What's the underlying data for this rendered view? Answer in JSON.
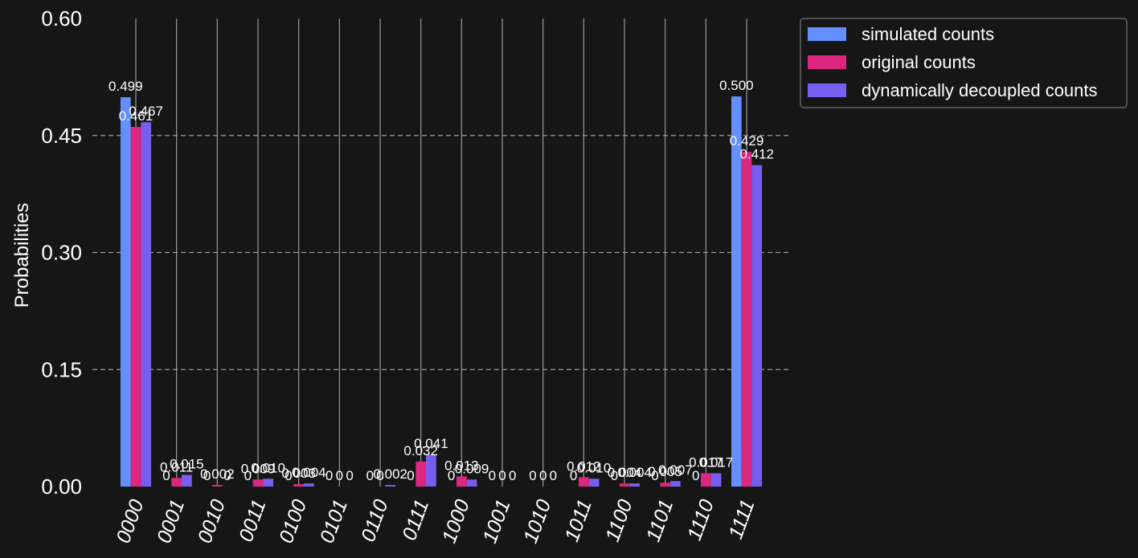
{
  "chart_data": {
    "type": "bar",
    "ylabel": "Probabilities",
    "xlabel": "",
    "ylim": [
      0,
      0.6
    ],
    "y_ticks": [
      "0.00",
      "0.15",
      "0.30",
      "0.45",
      "0.60"
    ],
    "categories": [
      "0000",
      "0001",
      "0010",
      "0011",
      "0100",
      "0101",
      "0110",
      "0111",
      "1000",
      "1001",
      "1010",
      "1011",
      "1100",
      "1101",
      "1110",
      "1111"
    ],
    "series": [
      {
        "name": "simulated counts",
        "color": "#648fff",
        "values": [
          0.499,
          0,
          0,
          0,
          0,
          0,
          0,
          0,
          0,
          0,
          0,
          0,
          0,
          0,
          0,
          0.5
        ],
        "labels": [
          "0.499",
          "0",
          "0",
          "0",
          "0",
          "0",
          "0",
          "0",
          "0",
          "0",
          "0",
          "0",
          "0",
          "0",
          "0",
          "0.500"
        ]
      },
      {
        "name": "original counts",
        "color": "#dc267f",
        "values": [
          0.461,
          0.011,
          0.002,
          0.009,
          0.003,
          0,
          0,
          0.032,
          0.013,
          0,
          0,
          0.012,
          0.004,
          0.005,
          0.017,
          0.429
        ],
        "labels": [
          "0.461",
          "0.011",
          "0.002",
          "0.009",
          "0.003",
          "0",
          "0",
          "0.032",
          "0.013",
          "0",
          "0",
          "0.012",
          "0.004",
          "0.005",
          "0.017",
          "0.429"
        ]
      },
      {
        "name": "dynamically decoupled counts",
        "color": "#785ef0",
        "values": [
          0.467,
          0.015,
          0,
          0.01,
          0.004,
          0,
          0.002,
          0.041,
          0.009,
          0,
          0,
          0.01,
          0.004,
          0.007,
          0.017,
          0.412
        ],
        "labels": [
          "0.467",
          "0.015",
          "0",
          "0.010",
          "0.004",
          "0",
          "0.002",
          "0.041",
          "0.009",
          "0",
          "0",
          "0.010",
          "0.004",
          "0.007",
          "0.017",
          "0.412"
        ]
      }
    ],
    "grid": {
      "x": true,
      "y": "dashed"
    },
    "legend_position": "outside-right-top",
    "colors": {
      "background": "#161616",
      "text": "#ffffff",
      "grid": "#9a9a9a"
    }
  }
}
